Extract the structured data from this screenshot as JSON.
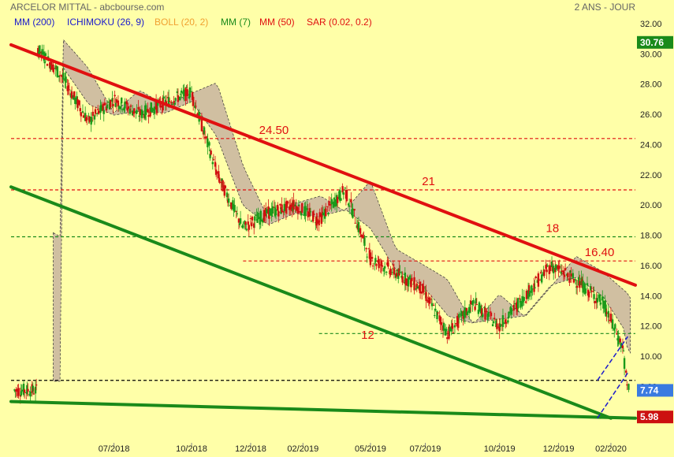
{
  "header": {
    "title": "ARCELOR MITTAL - abcbourse.com",
    "period": "2 ANS - JOUR"
  },
  "indicators": [
    {
      "label": "MM (200)",
      "color": "#1a1acc"
    },
    {
      "label": "ICHIMOKU (26, 9)",
      "color": "#1a1acc"
    },
    {
      "label": "BOLL (20, 2)",
      "color": "#f0a030"
    },
    {
      "label": "MM (7)",
      "color": "#1a8a1a"
    },
    {
      "label": "MM (50)",
      "color": "#e01010"
    },
    {
      "label": "SAR (0.02, 0.2)",
      "color": "#e01010"
    }
  ],
  "chart_data": {
    "type": "candlestick",
    "ylim": [
      5,
      32
    ],
    "y_ticks": [
      "32.00",
      "30.00",
      "28.00",
      "26.00",
      "24.00",
      "22.00",
      "20.00",
      "18.00",
      "16.00",
      "14.00",
      "12.00",
      "10.00",
      "8.00"
    ],
    "x_ticks": [
      "07/2018",
      "10/2018",
      "12/2018",
      "02/2019",
      "05/2019",
      "07/2019",
      "10/2019",
      "12/2019",
      "02/2020"
    ],
    "x_range": [
      "2018-03",
      "2020-03"
    ],
    "price_path": [
      [
        "2018-04",
        30.4
      ],
      [
        "2018-05",
        28.5
      ],
      [
        "2018-06",
        25.5
      ],
      [
        "2018-07",
        27.0
      ],
      [
        "2018-08",
        26.0
      ],
      [
        "2018-09",
        26.8
      ],
      [
        "2018-10",
        27.5
      ],
      [
        "2018-11",
        22.0
      ],
      [
        "2018-12",
        18.5
      ],
      [
        "2019-01",
        19.5
      ],
      [
        "2019-02",
        20.0
      ],
      [
        "2019-03",
        19.0
      ],
      [
        "2019-04",
        21.0
      ],
      [
        "2019-05",
        16.5
      ],
      [
        "2019-06",
        15.5
      ],
      [
        "2019-07",
        14.5
      ],
      [
        "2019-08",
        11.5
      ],
      [
        "2019-09",
        13.5
      ],
      [
        "2019-10",
        12.0
      ],
      [
        "2019-11",
        14.0
      ],
      [
        "2019-12",
        16.0
      ],
      [
        "2020-01",
        15.0
      ],
      [
        "2020-02",
        13.5
      ],
      [
        "2020-02-25",
        10.5
      ],
      [
        "2020-03",
        7.74
      ]
    ],
    "levels": [
      {
        "label": "24.50",
        "value": 24.4,
        "color": "#e01010",
        "from": "2018-03"
      },
      {
        "label": "21",
        "value": 21.0,
        "color": "#e01010",
        "from": "2018-03"
      },
      {
        "label": "18",
        "value": 17.9,
        "color": "#1a8a1a",
        "from": "2018-03"
      },
      {
        "label": "16.40",
        "value": 16.3,
        "color": "#e01010",
        "from": "2018-12"
      },
      {
        "label": "",
        "value": 11.5,
        "color": "#1a8a1a",
        "from": "2019-03"
      },
      {
        "label": "",
        "value": 8.4,
        "color": "#000000",
        "from": "2018-03"
      }
    ],
    "label_12": "12",
    "trendlines": [
      {
        "name": "resistance",
        "color": "#e01010",
        "points": [
          [
            "2018-03",
            30.6
          ],
          [
            "2020-03-10",
            14.7
          ]
        ]
      },
      {
        "name": "support",
        "color": "#1a8a1a",
        "points": [
          [
            "2018-03",
            21.2
          ],
          [
            "2020-02-10",
            5.9
          ]
        ]
      },
      {
        "name": "floor",
        "color": "#1a8a1a",
        "points": [
          [
            "2018-03",
            7.0
          ],
          [
            "2020-03-10",
            5.9
          ]
        ]
      }
    ],
    "channel": {
      "color": "#1a1acc",
      "lower": [
        [
          "2020-01-25",
          5.9
        ],
        [
          "2020-03-01",
          8.9
        ]
      ],
      "upper": [
        [
          "2020-01-25",
          8.4
        ],
        [
          "2020-03-01",
          11.3
        ]
      ]
    },
    "last_price": {
      "label": "7.74",
      "value": 7.74,
      "color": "#3a7ae0"
    },
    "marker_high": {
      "label": "30.76",
      "value": 30.76,
      "color": "#1a8a1a"
    },
    "marker_low": {
      "label": "5.98",
      "value": 5.98,
      "color": "#cc1010"
    }
  }
}
